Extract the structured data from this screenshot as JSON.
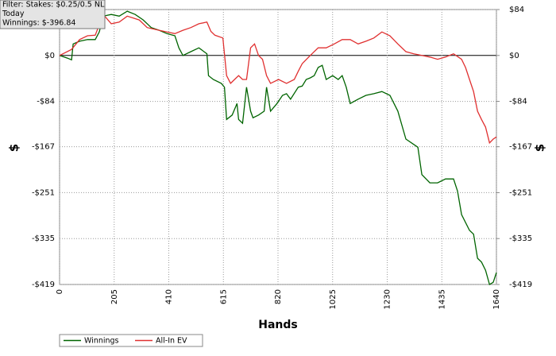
{
  "chart_data": {
    "type": "line",
    "info": [
      "Filter: Stakes: $0.25/0.5 NL",
      "Today",
      "Winnings: $-396.84"
    ],
    "x_label": "Hands",
    "y_label": "$",
    "y2_label": "$",
    "xlim": [
      0,
      1640
    ],
    "xticks": [
      0,
      205,
      410,
      615,
      820,
      1025,
      1230,
      1435,
      1640
    ],
    "ylim": [
      -419,
      84
    ],
    "yticks": [
      {
        "value": 84,
        "label": "$84"
      },
      {
        "value": 0,
        "label": "$0"
      },
      {
        "value": -84,
        "label": "-$84"
      },
      {
        "value": -167,
        "label": "-$167"
      },
      {
        "value": -251,
        "label": "-$251"
      },
      {
        "value": -335,
        "label": "-$335"
      },
      {
        "value": -419,
        "label": "-$419"
      }
    ],
    "y2lim": [
      -419,
      84
    ],
    "y2ticks": [
      {
        "value": 84,
        "label": "$84"
      },
      {
        "value": 0,
        "label": "$0"
      },
      {
        "value": -84,
        "label": "-$84"
      },
      {
        "value": -167,
        "label": "-$167"
      },
      {
        "value": -251,
        "label": "-$251"
      },
      {
        "value": -335,
        "label": "-$335"
      },
      {
        "value": -419,
        "label": "-$419"
      }
    ],
    "grid": true,
    "legend": "bottom-left",
    "series": [
      {
        "name": "Winnings",
        "color": "#006400",
        "x": [
          0,
          30,
          45,
          51,
          75,
          105,
          134,
          149,
          164,
          194,
          224,
          254,
          284,
          314,
          344,
          374,
          403,
          433,
          448,
          463,
          493,
          523,
          553,
          559,
          577,
          607,
          619,
          627,
          648,
          666,
          672,
          687,
          702,
          717,
          726,
          747,
          768,
          777,
          792,
          816,
          837,
          852,
          867,
          896,
          911,
          926,
          941,
          956,
          971,
          986,
          1001,
          1025,
          1046,
          1061,
          1076,
          1091,
          1121,
          1150,
          1180,
          1210,
          1240,
          1270,
          1300,
          1345,
          1360,
          1390,
          1419,
          1449,
          1479,
          1494,
          1509,
          1539,
          1554,
          1569,
          1584,
          1599,
          1614,
          1628,
          1640
        ],
        "values": [
          0,
          -5,
          -8,
          21,
          26,
          29,
          29,
          43,
          72,
          75,
          72,
          81,
          75,
          65,
          51,
          46,
          40,
          36,
          14,
          0,
          7,
          14,
          3,
          -37,
          -44,
          -51,
          -58,
          -117,
          -109,
          -88,
          -117,
          -124,
          -58,
          -102,
          -114,
          -109,
          -102,
          -58,
          -102,
          -88,
          -73,
          -70,
          -80,
          -58,
          -56,
          -44,
          -41,
          -37,
          -22,
          -18,
          -44,
          -37,
          -44,
          -37,
          -58,
          -88,
          -80,
          -73,
          -70,
          -66,
          -73,
          -102,
          -153,
          -168,
          -218,
          -233,
          -233,
          -226,
          -226,
          -248,
          -291,
          -320,
          -327,
          -371,
          -378,
          -393,
          -419,
          -415,
          -397
        ]
      },
      {
        "name": "All-In EV",
        "color": "#e03030",
        "x": [
          0,
          45,
          75,
          105,
          134,
          164,
          194,
          224,
          254,
          299,
          329,
          374,
          403,
          433,
          463,
          493,
          523,
          553,
          568,
          583,
          613,
          627,
          642,
          657,
          672,
          687,
          702,
          717,
          732,
          747,
          762,
          777,
          792,
          822,
          852,
          881,
          896,
          911,
          941,
          971,
          1001,
          1031,
          1061,
          1091,
          1121,
          1150,
          1180,
          1210,
          1240,
          1270,
          1300,
          1330,
          1360,
          1390,
          1419,
          1449,
          1479,
          1509,
          1524,
          1539,
          1554,
          1569,
          1584,
          1599,
          1614,
          1628,
          1640
        ],
        "values": [
          0,
          11,
          29,
          36,
          37,
          75,
          58,
          61,
          72,
          65,
          51,
          46,
          43,
          40,
          46,
          51,
          58,
          61,
          44,
          37,
          32,
          -37,
          -51,
          -44,
          -37,
          -44,
          -44,
          14,
          21,
          0,
          -7,
          -37,
          -51,
          -44,
          -51,
          -44,
          -29,
          -15,
          0,
          14,
          14,
          21,
          29,
          29,
          21,
          26,
          32,
          43,
          36,
          21,
          7,
          3,
          0,
          -3,
          -7,
          -3,
          3,
          -7,
          -22,
          -44,
          -66,
          -102,
          -117,
          -131,
          -160,
          -153,
          -149
        ]
      }
    ]
  }
}
